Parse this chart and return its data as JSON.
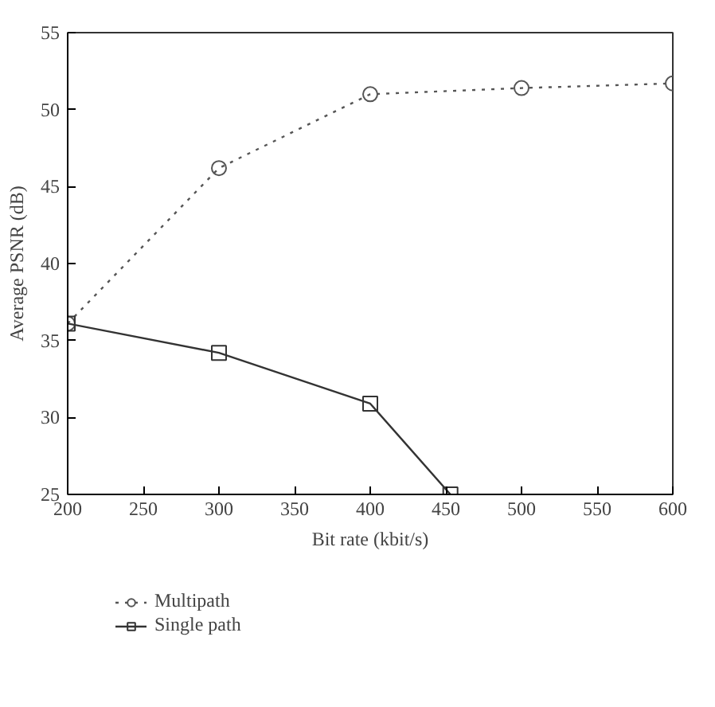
{
  "chart_data": {
    "type": "line",
    "xlabel": "Bit rate (kbit/s)",
    "ylabel": "Average PSNR (dB)",
    "xlim": [
      200,
      600
    ],
    "xticks": [
      200,
      250,
      300,
      350,
      400,
      450,
      500,
      550,
      600
    ],
    "ylim": [
      25,
      55
    ],
    "yticks": [
      25,
      30,
      35,
      40,
      45,
      50,
      55
    ],
    "grid": false,
    "legend": "bottom left",
    "series": [
      {
        "name": "Multipath",
        "color": "#555555",
        "marker": "circle",
        "line_style": "dotted",
        "x": [
          200,
          300,
          400,
          500,
          600
        ],
        "values": [
          36.1,
          46.2,
          51.0,
          51.4,
          51.7
        ]
      },
      {
        "name": "Single path",
        "color": "#333333",
        "marker": "square",
        "line_style": "solid",
        "x": [
          200,
          300,
          400,
          453
        ],
        "values": [
          36.1,
          34.2,
          30.9,
          25
        ]
      }
    ]
  }
}
